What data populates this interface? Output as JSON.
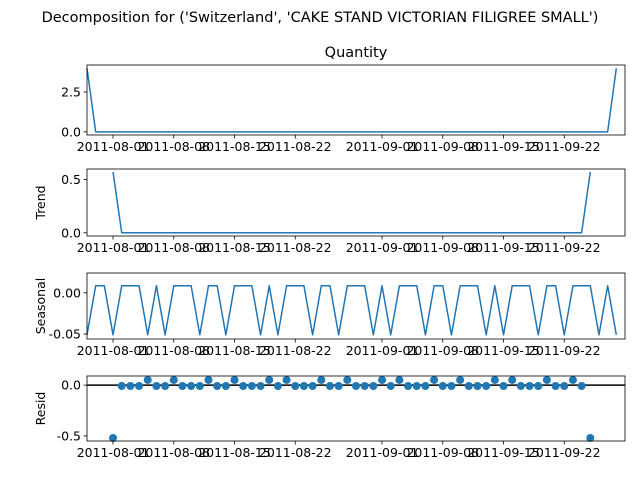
{
  "title": "Decomposition for ('Switzerland', 'CAKE STAND VICTORIAN FILIGREE SMALL')",
  "colors": {
    "line": "#1f77b4",
    "axis": "#000000",
    "background": "#ffffff"
  },
  "chart_data": [
    {
      "type": "line",
      "panel": "observed",
      "title": "Quantity",
      "ylabel": "",
      "x_start": "2011-07-29",
      "x_end": "2011-09-29",
      "x_step_days": 1,
      "x_ticks": [
        "2011-08-01",
        "2011-08-08",
        "2011-08-15",
        "2011-08-22",
        "2011-09-01",
        "2011-09-08",
        "2011-09-15",
        "2011-09-22"
      ],
      "y_ticks": [
        "0.0",
        "2.5"
      ],
      "ylim": [
        -0.2,
        4.2
      ],
      "values": [
        4,
        0,
        0,
        0,
        0,
        0,
        0,
        0,
        0,
        0,
        0,
        0,
        0,
        0,
        0,
        0,
        0,
        0,
        0,
        0,
        0,
        0,
        0,
        0,
        0,
        0,
        0,
        0,
        0,
        0,
        0,
        0,
        0,
        0,
        0,
        0,
        0,
        0,
        0,
        0,
        0,
        0,
        0,
        0,
        0,
        0,
        0,
        0,
        0,
        0,
        0,
        0,
        0,
        0,
        0,
        0,
        0,
        0,
        0,
        0,
        0,
        4
      ]
    },
    {
      "type": "line",
      "panel": "trend",
      "title": "",
      "ylabel": "Trend",
      "x_start": "2011-07-29",
      "x_end": "2011-09-29",
      "x_step_days": 1,
      "x_ticks": [
        "2011-08-01",
        "2011-08-08",
        "2011-08-15",
        "2011-08-22",
        "2011-09-01",
        "2011-09-08",
        "2011-09-15",
        "2011-09-22"
      ],
      "y_ticks": [
        "0.0",
        "0.5"
      ],
      "ylim": [
        -0.03,
        0.6
      ],
      "values": [
        null,
        null,
        null,
        0.5714,
        0,
        0,
        0,
        0,
        0,
        0,
        0,
        0,
        0,
        0,
        0,
        0,
        0,
        0,
        0,
        0,
        0,
        0,
        0,
        0,
        0,
        0,
        0,
        0,
        0,
        0,
        0,
        0,
        0,
        0,
        0,
        0,
        0,
        0,
        0,
        0,
        0,
        0,
        0,
        0,
        0,
        0,
        0,
        0,
        0,
        0,
        0,
        0,
        0,
        0,
        0,
        0,
        0,
        0,
        0.5714,
        null,
        null,
        null
      ]
    },
    {
      "type": "line",
      "panel": "seasonal",
      "title": "",
      "ylabel": "Seasonal",
      "x_start": "2011-07-29",
      "x_end": "2011-09-29",
      "x_step_days": 1,
      "x_ticks": [
        "2011-08-01",
        "2011-08-08",
        "2011-08-15",
        "2011-08-22",
        "2011-09-01",
        "2011-09-08",
        "2011-09-15",
        "2011-09-22"
      ],
      "y_ticks": [
        "-0.05",
        "0.00"
      ],
      "ylim": [
        -0.056,
        0.024
      ],
      "values": [
        -0.051,
        0.0085,
        0.0085,
        -0.051,
        0.0085,
        0.0085,
        0.0085,
        -0.051,
        0.0085,
        -0.051,
        0.0085,
        0.0085,
        0.0085,
        -0.051,
        0.0085,
        0.0085,
        -0.051,
        0.0085,
        0.0085,
        0.0085,
        -0.051,
        0.0085,
        -0.051,
        0.0085,
        0.0085,
        0.0085,
        -0.051,
        0.0085,
        0.0085,
        -0.051,
        0.0085,
        0.0085,
        0.0085,
        -0.051,
        0.0085,
        -0.051,
        0.0085,
        0.0085,
        0.0085,
        -0.051,
        0.0085,
        0.0085,
        -0.051,
        0.0085,
        0.0085,
        0.0085,
        -0.051,
        0.0085,
        -0.051,
        0.0085,
        0.0085,
        0.0085,
        -0.051,
        0.0085,
        0.0085,
        -0.051,
        0.0085,
        0.0085,
        0.0085,
        -0.051,
        0.0085,
        -0.051
      ]
    },
    {
      "type": "scatter",
      "panel": "resid",
      "title": "",
      "ylabel": "Resid",
      "x_start": "2011-07-29",
      "x_end": "2011-09-29",
      "x_step_days": 1,
      "x_ticks": [
        "2011-08-01",
        "2011-08-08",
        "2011-08-15",
        "2011-08-22",
        "2011-09-01",
        "2011-09-08",
        "2011-09-15",
        "2011-09-22"
      ],
      "y_ticks": [
        "-0.5",
        "0.0"
      ],
      "ylim": [
        -0.55,
        0.09
      ],
      "zero_line": true,
      "values": [
        null,
        null,
        null,
        -0.52,
        -0.0085,
        -0.0085,
        -0.0085,
        0.051,
        -0.0085,
        -0.0085,
        0.051,
        -0.0085,
        -0.0085,
        -0.0085,
        0.051,
        -0.0085,
        -0.0085,
        0.051,
        -0.0085,
        -0.0085,
        -0.0085,
        0.051,
        -0.0085,
        0.051,
        -0.0085,
        -0.0085,
        -0.0085,
        0.051,
        -0.0085,
        -0.0085,
        0.051,
        -0.0085,
        -0.0085,
        -0.0085,
        0.051,
        -0.0085,
        0.051,
        -0.0085,
        -0.0085,
        -0.0085,
        0.051,
        -0.0085,
        -0.0085,
        0.051,
        -0.0085,
        -0.0085,
        -0.0085,
        0.051,
        -0.0085,
        0.051,
        -0.0085,
        -0.0085,
        -0.0085,
        0.051,
        -0.0085,
        -0.0085,
        0.051,
        -0.0085,
        -0.52,
        null,
        null,
        null
      ]
    }
  ]
}
